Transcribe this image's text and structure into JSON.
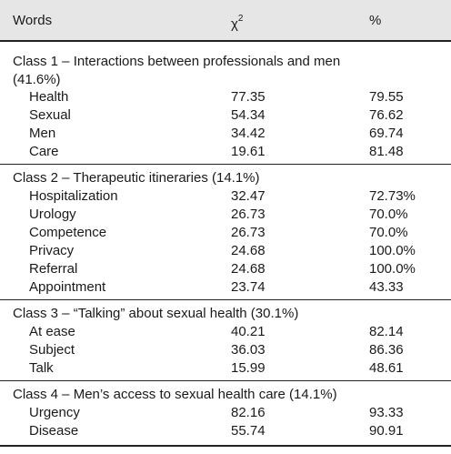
{
  "header": {
    "words": "Words",
    "chi_symbol": "χ",
    "chi_power": "2",
    "percent": "%"
  },
  "classes": [
    {
      "title": "Class 1 – Interactions between professionals and men (41.6%)",
      "rows": [
        {
          "word": "Health",
          "chi2": "77.35",
          "pct": "79.55"
        },
        {
          "word": "Sexual",
          "chi2": "54.34",
          "pct": "76.62"
        },
        {
          "word": "Men",
          "chi2": "34.42",
          "pct": "69.74"
        },
        {
          "word": "Care",
          "chi2": "19.61",
          "pct": "81.48"
        }
      ]
    },
    {
      "title": "Class 2 – Therapeutic itineraries (14.1%)",
      "rows": [
        {
          "word": "Hospitalization",
          "chi2": "32.47",
          "pct": "72.73%"
        },
        {
          "word": "Urology",
          "chi2": "26.73",
          "pct": "70.0%"
        },
        {
          "word": "Competence",
          "chi2": "26.73",
          "pct": "70.0%"
        },
        {
          "word": "Privacy",
          "chi2": "24.68",
          "pct": "100.0%"
        },
        {
          "word": "Referral",
          "chi2": "24.68",
          "pct": "100.0%"
        },
        {
          "word": "Appointment",
          "chi2": "23.74",
          "pct": "43.33"
        }
      ]
    },
    {
      "title": "Class 3 – “Talking” about sexual health (30.1%)",
      "rows": [
        {
          "word": "At ease",
          "chi2": "40.21",
          "pct": "82.14"
        },
        {
          "word": "Subject",
          "chi2": "36.03",
          "pct": "86.36"
        },
        {
          "word": "Talk",
          "chi2": "15.99",
          "pct": "48.61"
        }
      ]
    },
    {
      "title": "Class 4 – Men’s access to sexual health care (14.1%)",
      "rows": [
        {
          "word": "Urgency",
          "chi2": "82.16",
          "pct": "93.33"
        },
        {
          "word": "Disease",
          "chi2": "55.74",
          "pct": "90.91"
        }
      ]
    }
  ]
}
